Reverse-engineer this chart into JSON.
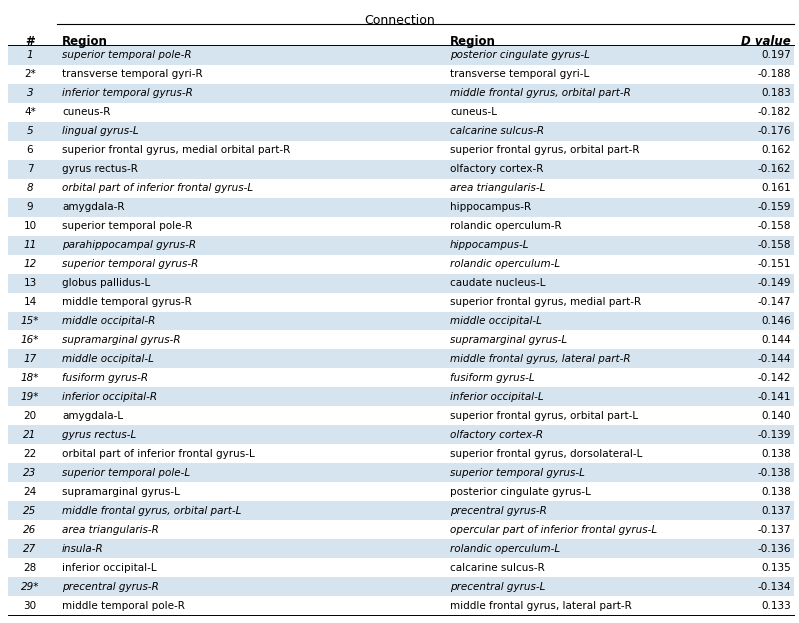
{
  "title": "Connection",
  "rows": [
    [
      "1",
      "superior temporal pole-R",
      "posterior cingulate gyrus-L",
      "0.197",
      true,
      true
    ],
    [
      "2*",
      "transverse temporal gyri-R",
      "transverse temporal gyri-L",
      "-0.188",
      false,
      false
    ],
    [
      "3",
      "inferior temporal gyrus-R",
      "middle frontal gyrus, orbital part-R",
      "0.183",
      true,
      true
    ],
    [
      "4*",
      "cuneus-R",
      "cuneus-L",
      "-0.182",
      false,
      false
    ],
    [
      "5",
      "lingual gyrus-L",
      "calcarine sulcus-R",
      "-0.176",
      true,
      true
    ],
    [
      "6",
      "superior frontal gyrus, medial orbital part-R",
      "superior frontal gyrus, orbital part-R",
      "0.162",
      false,
      false
    ],
    [
      "7",
      "gyrus rectus-R",
      "olfactory cortex-R",
      "-0.162",
      true,
      false
    ],
    [
      "8",
      "orbital part of inferior frontal gyrus-L",
      "area triangularis-L",
      "0.161",
      false,
      true
    ],
    [
      "9",
      "amygdala-R",
      "hippocampus-R",
      "-0.159",
      true,
      false
    ],
    [
      "10",
      "superior temporal pole-R",
      "rolandic operculum-R",
      "-0.158",
      false,
      false
    ],
    [
      "11",
      "parahippocampal gyrus-R",
      "hippocampus-L",
      "-0.158",
      true,
      true
    ],
    [
      "12",
      "superior temporal gyrus-R",
      "rolandic operculum-L",
      "-0.151",
      false,
      true
    ],
    [
      "13",
      "globus pallidus-L",
      "caudate nucleus-L",
      "-0.149",
      true,
      false
    ],
    [
      "14",
      "middle temporal gyrus-R",
      "superior frontal gyrus, medial part-R",
      "-0.147",
      false,
      false
    ],
    [
      "15*",
      "middle occipital-R",
      "middle occipital-L",
      "0.146",
      true,
      true
    ],
    [
      "16*",
      "supramarginal gyrus-R",
      "supramarginal gyrus-L",
      "0.144",
      false,
      true
    ],
    [
      "17",
      "middle occipital-L",
      "middle frontal gyrus, lateral part-R",
      "-0.144",
      true,
      true
    ],
    [
      "18*",
      "fusiform gyrus-R",
      "fusiform gyrus-L",
      "-0.142",
      false,
      true
    ],
    [
      "19*",
      "inferior occipital-R",
      "inferior occipital-L",
      "-0.141",
      true,
      true
    ],
    [
      "20",
      "amygdala-L",
      "superior frontal gyrus, orbital part-L",
      "0.140",
      false,
      false
    ],
    [
      "21",
      "gyrus rectus-L",
      "olfactory cortex-R",
      "-0.139",
      true,
      true
    ],
    [
      "22",
      "orbital part of inferior frontal gyrus-L",
      "superior frontal gyrus, dorsolateral-L",
      "0.138",
      false,
      false
    ],
    [
      "23",
      "superior temporal pole-L",
      "superior temporal gyrus-L",
      "-0.138",
      true,
      true
    ],
    [
      "24",
      "supramarginal gyrus-L",
      "posterior cingulate gyrus-L",
      "0.138",
      false,
      false
    ],
    [
      "25",
      "middle frontal gyrus, orbital part-L",
      "precentral gyrus-R",
      "0.137",
      true,
      true
    ],
    [
      "26",
      "area triangularis-R",
      "opercular part of inferior frontal gyrus-L",
      "-0.137",
      false,
      true
    ],
    [
      "27",
      "insula-R",
      "rolandic operculum-L",
      "-0.136",
      true,
      true
    ],
    [
      "28",
      "inferior occipital-L",
      "calcarine sulcus-R",
      "0.135",
      false,
      false
    ],
    [
      "29*",
      "precentral gyrus-R",
      "precentral gyrus-L",
      "-0.134",
      true,
      true
    ],
    [
      "30",
      "middle temporal pole-R",
      "middle frontal gyrus, lateral part-R",
      "0.133",
      false,
      false
    ]
  ],
  "bg_light": "#d6e4f0",
  "bg_white": "#ffffff",
  "fig_width": 7.99,
  "fig_height": 6.23,
  "dpi": 100
}
